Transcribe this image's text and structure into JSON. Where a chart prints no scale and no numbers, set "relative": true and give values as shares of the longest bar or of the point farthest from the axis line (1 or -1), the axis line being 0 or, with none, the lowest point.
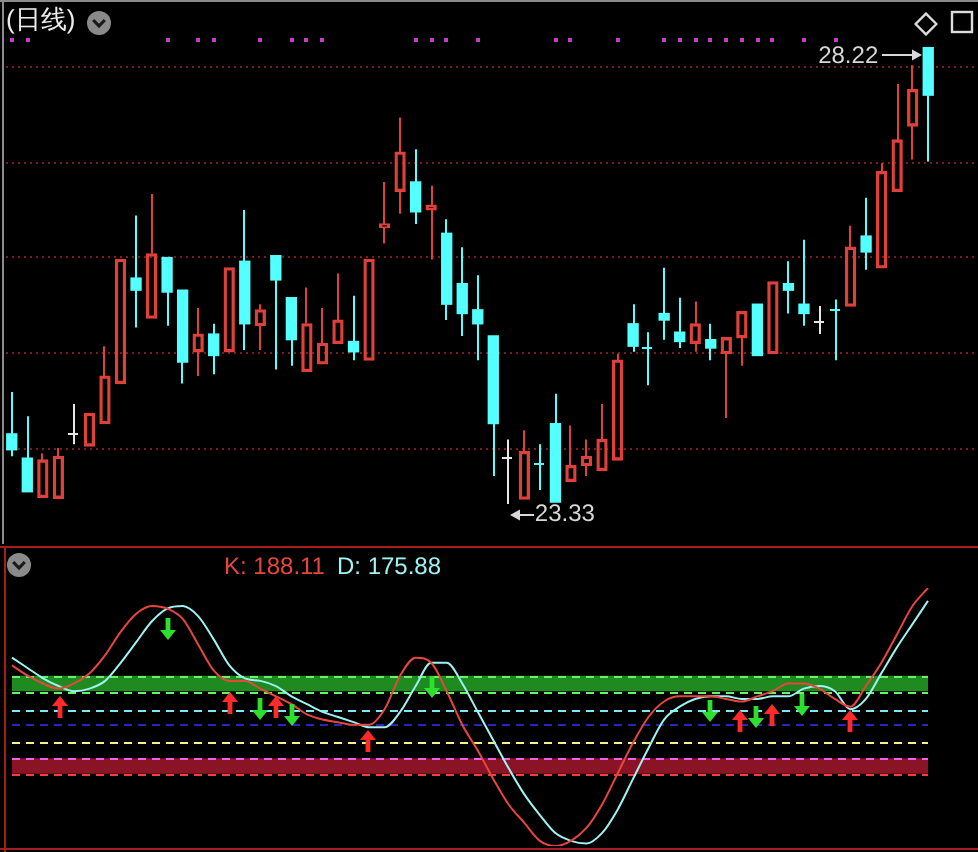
{
  "chart_data": [
    {
      "type": "candlestick",
      "title": "(日线)",
      "categories": [
        null,
        null,
        null,
        null,
        null,
        null,
        null,
        null,
        null,
        null,
        null,
        null,
        null,
        null,
        null,
        null,
        null,
        null,
        null,
        null,
        null,
        null,
        null,
        null,
        null,
        null,
        null,
        null,
        null,
        null,
        null,
        null,
        null,
        null,
        null,
        null,
        null,
        null,
        null,
        null,
        null,
        null,
        null,
        null,
        null,
        null,
        null,
        null,
        null,
        null,
        null,
        null,
        null,
        null,
        null,
        null,
        null,
        null,
        null,
        null
      ],
      "ohlc": [
        [
          24.08,
          24.53,
          23.84,
          23.91
        ],
        [
          23.82,
          24.27,
          23.46,
          23.46
        ],
        [
          23.4,
          23.87,
          23.4,
          23.8
        ],
        [
          23.39,
          23.93,
          23.39,
          23.84
        ],
        [
          24.08,
          24.4,
          23.97,
          24.08
        ],
        [
          23.95,
          24.3,
          23.95,
          24.3
        ],
        [
          24.19,
          25.02,
          24.19,
          24.7
        ],
        [
          24.62,
          25.95,
          24.62,
          25.95
        ],
        [
          25.75,
          26.42,
          25.22,
          25.62
        ],
        [
          25.32,
          26.65,
          25.32,
          26.01
        ],
        [
          25.97,
          25.97,
          25.24,
          25.6
        ],
        [
          25.62,
          25.62,
          24.62,
          24.85
        ],
        [
          24.96,
          25.43,
          24.7,
          25.15
        ],
        [
          25.15,
          25.26,
          24.72,
          24.92
        ],
        [
          24.96,
          25.86,
          24.96,
          25.86
        ],
        [
          25.93,
          26.48,
          24.98,
          25.26
        ],
        [
          25.24,
          25.47,
          24.98,
          25.41
        ],
        [
          25.99,
          25.99,
          24.77,
          25.73
        ],
        [
          25.54,
          25.54,
          24.81,
          25.09
        ],
        [
          24.75,
          25.65,
          24.75,
          25.26
        ],
        [
          24.83,
          25.43,
          24.83,
          25.05
        ],
        [
          25.05,
          25.8,
          25.05,
          25.3
        ],
        [
          25.07,
          25.56,
          24.87,
          24.96
        ],
        [
          24.87,
          25.95,
          24.87,
          25.95
        ],
        [
          26.29,
          26.78,
          26.12,
          26.33
        ],
        [
          26.68,
          27.47,
          26.44,
          27.1
        ],
        [
          26.78,
          27.13,
          26.33,
          26.46
        ],
        [
          26.48,
          26.74,
          25.95,
          26.53
        ],
        [
          26.23,
          26.38,
          25.3,
          25.47
        ],
        [
          25.69,
          26.08,
          25.13,
          25.37
        ],
        [
          25.41,
          25.78,
          24.87,
          25.26
        ],
        [
          25.13,
          25.13,
          23.63,
          24.19
        ],
        [
          23.82,
          24.02,
          23.33,
          23.82
        ],
        [
          23.38,
          24.12,
          23.38,
          23.89
        ],
        [
          23.76,
          23.97,
          23.48,
          23.76
        ],
        [
          24.19,
          24.51,
          23.35,
          23.35
        ],
        [
          23.57,
          24.17,
          23.57,
          23.74
        ],
        [
          23.74,
          24.02,
          23.63,
          23.84
        ],
        [
          23.69,
          24.4,
          23.69,
          24.02
        ],
        [
          23.8,
          24.94,
          23.8,
          24.87
        ],
        [
          25.26,
          25.47,
          24.96,
          25.02
        ],
        [
          25.0,
          25.17,
          24.6,
          25.0
        ],
        [
          25.37,
          25.86,
          25.09,
          25.3
        ],
        [
          25.17,
          25.54,
          25.0,
          25.07
        ],
        [
          25.05,
          25.5,
          24.96,
          25.26
        ],
        [
          25.09,
          25.26,
          24.87,
          25.0
        ],
        [
          24.94,
          25.11,
          24.25,
          25.11
        ],
        [
          25.11,
          25.39,
          24.81,
          25.39
        ],
        [
          25.47,
          25.47,
          24.92,
          24.92
        ],
        [
          24.94,
          25.71,
          24.94,
          25.71
        ],
        [
          25.69,
          25.93,
          25.37,
          25.62
        ],
        [
          25.47,
          26.16,
          25.24,
          25.37
        ],
        [
          25.28,
          25.45,
          25.15,
          25.28
        ],
        [
          25.41,
          25.52,
          24.87,
          25.41
        ],
        [
          25.45,
          26.31,
          25.45,
          26.08
        ],
        [
          26.2,
          26.61,
          25.84,
          26.03
        ],
        [
          25.86,
          26.98,
          25.86,
          26.89
        ],
        [
          26.68,
          27.83,
          26.68,
          27.23
        ],
        [
          27.38,
          28.03,
          27.02,
          27.77
        ],
        [
          28.22,
          28.22,
          27.0,
          27.71
        ]
      ],
      "colors": [
        "#54ffff",
        "#54ffff",
        "#e0403a",
        "#e0403a",
        "#e6e6e6",
        "#e0403a",
        "#e0403a",
        "#e0403a",
        "#54ffff",
        "#e0403a",
        "#54ffff",
        "#54ffff",
        "#e0403a",
        "#54ffff",
        "#e0403a",
        "#54ffff",
        "#e0403a",
        "#54ffff",
        "#54ffff",
        "#e0403a",
        "#e0403a",
        "#e0403a",
        "#54ffff",
        "#e0403a",
        "#e0403a",
        "#e0403a",
        "#54ffff",
        "#e0403a",
        "#54ffff",
        "#54ffff",
        "#54ffff",
        "#54ffff",
        "#e6e6e6",
        "#e0403a",
        "#54ffff",
        "#54ffff",
        "#e0403a",
        "#e0403a",
        "#e0403a",
        "#e0403a",
        "#54ffff",
        "#54ffff",
        "#54ffff",
        "#54ffff",
        "#e0403a",
        "#54ffff",
        "#e0403a",
        "#e0403a",
        "#54ffff",
        "#e0403a",
        "#54ffff",
        "#54ffff",
        "#e6e6e6",
        "#54ffff",
        "#e0403a",
        "#54ffff",
        "#e0403a",
        "#e0403a",
        "#e0403a",
        "#54ffff"
      ],
      "ylim": [
        22.9,
        28.73
      ],
      "yticks": [
        {
          "value": 23.93,
          "label": null
        },
        {
          "value": 24.95,
          "label": null
        },
        {
          "value": 25.98,
          "label": null
        },
        {
          "value": 27.0,
          "label": null
        },
        {
          "value": 28.02,
          "label": null
        }
      ],
      "grid": "y",
      "tick_labels": false,
      "annotations": [
        "28.22",
        "23.33"
      ]
    },
    {
      "type": "line",
      "relative": true,
      "categories": [
        null,
        null,
        null,
        null,
        null,
        null,
        null,
        null,
        null,
        null,
        null,
        null,
        null,
        null,
        null,
        null,
        null,
        null,
        null,
        null,
        null,
        null,
        null,
        null,
        null,
        null,
        null,
        null,
        null,
        null,
        null,
        null,
        null,
        null,
        null,
        null,
        null,
        null,
        null,
        null,
        null,
        null,
        null,
        null,
        null,
        null,
        null,
        null,
        null,
        null,
        null,
        null,
        null,
        null,
        null,
        null,
        null,
        null,
        null,
        null
      ],
      "series": [
        {
          "name": "K: 188.11",
          "color": "#e8453f",
          "values": [
            0.7,
            0.66,
            0.63,
            0.61,
            0.63,
            0.67,
            0.74,
            0.83,
            0.9,
            0.93,
            0.92,
            0.88,
            0.78,
            0.68,
            0.64,
            0.64,
            0.61,
            0.58,
            0.55,
            0.51,
            0.49,
            0.48,
            0.47,
            0.47,
            0.53,
            0.66,
            0.73,
            0.71,
            0.6,
            0.47,
            0.37,
            0.26,
            0.16,
            0.09,
            0.02,
            0,
            0.02,
            0.07,
            0.16,
            0.28,
            0.4,
            0.5,
            0.56,
            0.58,
            0.58,
            0.58,
            0.57,
            0.56,
            0.58,
            0.6,
            0.63,
            0.63,
            0.61,
            0.57,
            0.54,
            0.62,
            0.71,
            0.82,
            0.93,
            1
          ]
        },
        {
          "name": "D: 175.88",
          "color": "#9ef2f2",
          "values": [
            0.73,
            0.69,
            0.65,
            0.62,
            0.6,
            0.61,
            0.64,
            0.71,
            0.79,
            0.87,
            0.92,
            0.93,
            0.89,
            0.8,
            0.7,
            0.65,
            0.64,
            0.62,
            0.58,
            0.55,
            0.52,
            0.5,
            0.48,
            0.46,
            0.46,
            0.52,
            0.62,
            0.71,
            0.71,
            0.63,
            0.52,
            0.41,
            0.3,
            0.2,
            0.12,
            0.05,
            0.02,
            0.01,
            0.05,
            0.14,
            0.26,
            0.38,
            0.49,
            0.54,
            0.57,
            0.58,
            0.58,
            0.57,
            0.57,
            0.58,
            0.58,
            0.61,
            0.62,
            0.6,
            0.53,
            0.57,
            0.67,
            0.77,
            0.86,
            0.95
          ]
        }
      ],
      "bands": [
        {
          "axis": "y",
          "from": 0.6,
          "to": 0.66,
          "color": "#1f8a1f"
        },
        {
          "axis": "y",
          "from": 0.28,
          "to": 0.34,
          "color": "#8a1426"
        }
      ],
      "ref_lines": [
        {
          "axis": "y",
          "value": 0.66,
          "color": "#6cf06c",
          "line_style": "dashed"
        },
        {
          "axis": "y",
          "value": 0.6,
          "color": "#6cf06c",
          "line_style": "dashed"
        },
        {
          "axis": "y",
          "value": 0.53,
          "color": "#7ce8ff",
          "line_style": "dashed"
        },
        {
          "axis": "y",
          "value": 0.47,
          "color": "#2828b8",
          "line_style": "dashed"
        },
        {
          "axis": "y",
          "value": 0.4,
          "color": "#f4f08c",
          "line_style": "dashed"
        },
        {
          "axis": "y",
          "value": 0.34,
          "color": "#f060f0",
          "line_style": "dashed"
        },
        {
          "axis": "y",
          "value": 0.28,
          "color": "#f04040",
          "line_style": "dashed"
        }
      ],
      "legend": "top"
    }
  ]
}
